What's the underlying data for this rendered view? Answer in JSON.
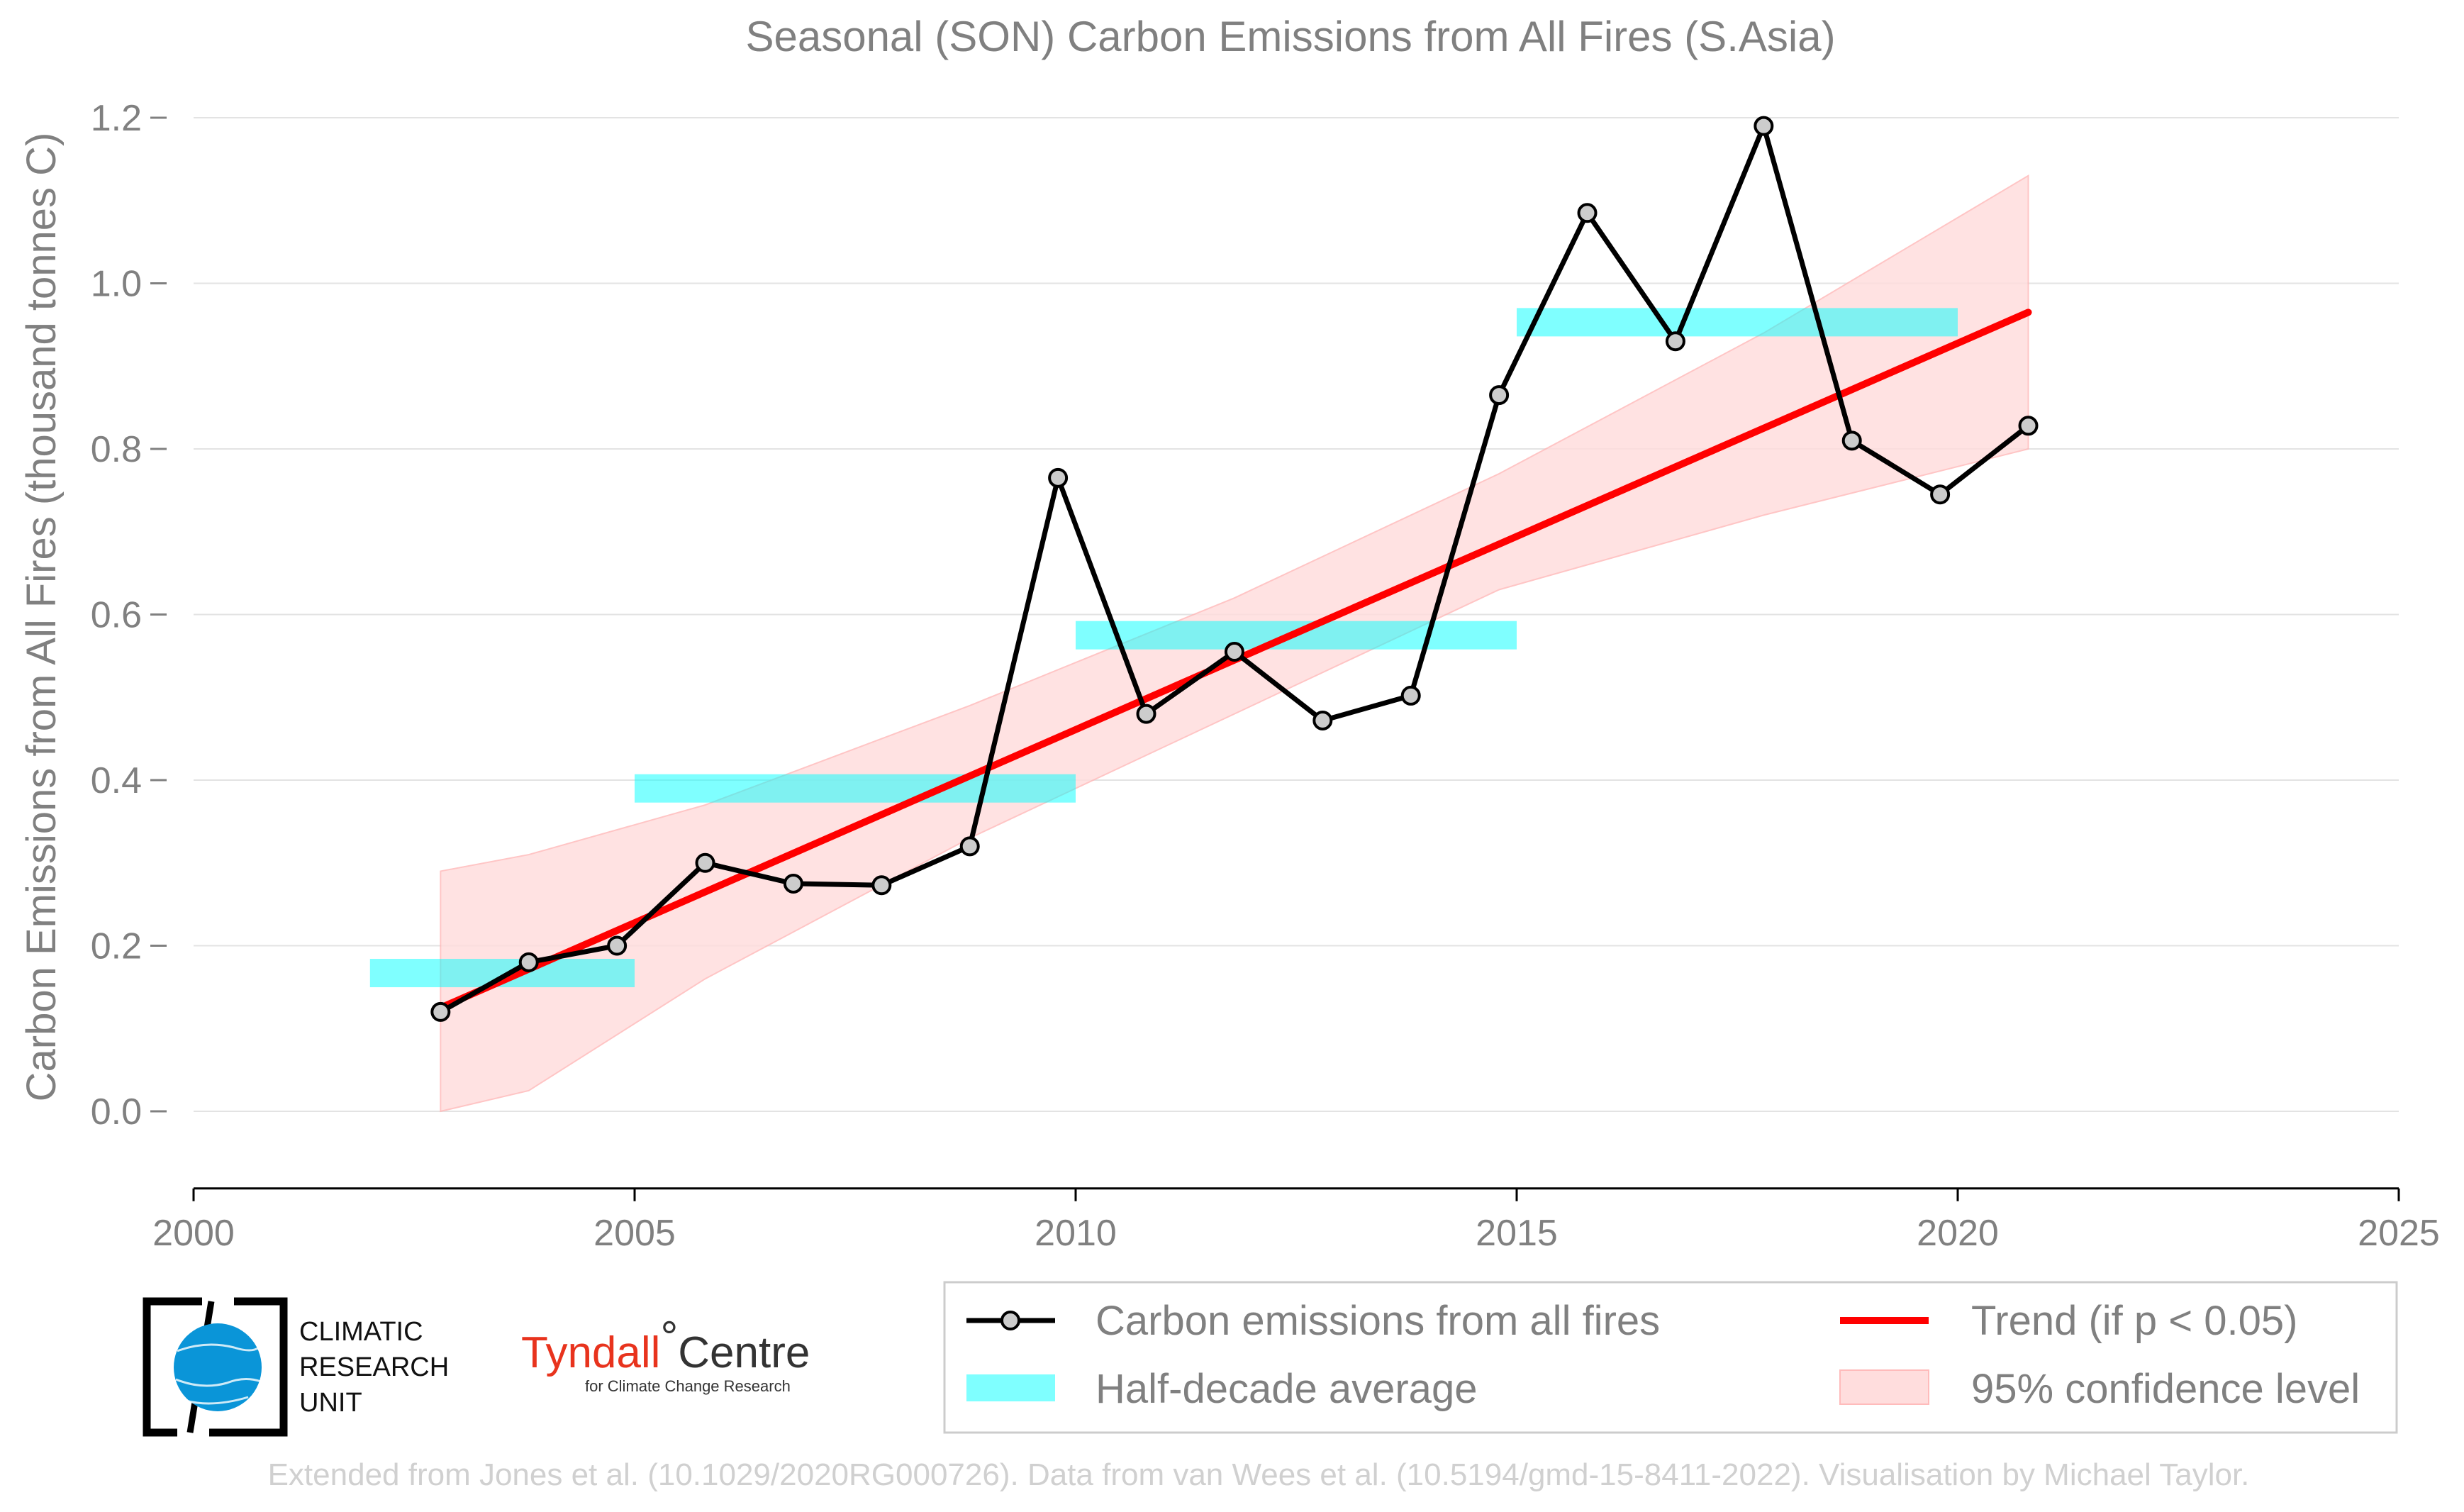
{
  "chart_data": {
    "type": "line",
    "title": "Seasonal (SON) Carbon Emissions from All Fires (S.Asia)",
    "xlabel": "",
    "ylabel": "Carbon Emissions from All Fires (thousand tonnes C)",
    "xlim": [
      2000,
      2025
    ],
    "ylim": [
      -0.1,
      1.25
    ],
    "x_ticks": [
      2000,
      2005,
      2010,
      2015,
      2020,
      2025
    ],
    "y_ticks": [
      0.0,
      0.2,
      0.4,
      0.6,
      0.8,
      1.0,
      1.2
    ],
    "y_tick_labels": [
      "0.0",
      "0.2",
      "0.4",
      "0.6",
      "0.8",
      "1.0",
      "1.2"
    ],
    "grid": "horizontal",
    "series": [
      {
        "name": "Carbon emissions from all fires",
        "type": "line-markers",
        "color": "#000000",
        "x": [
          2002.8,
          2003.8,
          2004.8,
          2005.8,
          2006.8,
          2007.8,
          2008.8,
          2009.8,
          2010.8,
          2011.8,
          2012.8,
          2013.8,
          2014.8,
          2015.8,
          2016.8,
          2017.8,
          2018.8,
          2019.8,
          2020.8
        ],
        "values": [
          0.12,
          0.18,
          0.2,
          0.3,
          0.275,
          0.273,
          0.32,
          0.765,
          0.48,
          0.555,
          0.472,
          0.502,
          0.865,
          1.085,
          0.93,
          1.19,
          0.81,
          0.745,
          0.828
        ]
      },
      {
        "name": "Half-decade average",
        "type": "segments",
        "color": "#00ffff",
        "segments": [
          {
            "x0": 2002,
            "x1": 2005,
            "value": 0.167
          },
          {
            "x0": 2005,
            "x1": 2010,
            "value": 0.39
          },
          {
            "x0": 2010,
            "x1": 2015,
            "value": 0.575
          },
          {
            "x0": 2015,
            "x1": 2020,
            "value": 0.953
          }
        ]
      },
      {
        "name": "Trend (if p < 0.05)",
        "type": "line",
        "color": "#ff0000",
        "x": [
          2002.8,
          2020.8
        ],
        "values": [
          0.125,
          0.965
        ]
      },
      {
        "name": "95% confidence level",
        "type": "band",
        "color": "#ffb3b3",
        "x": [
          2002.8,
          2003.8,
          2005.8,
          2008.8,
          2011.8,
          2014.8,
          2017.8,
          2020.8
        ],
        "upper": [
          0.29,
          0.31,
          0.37,
          0.49,
          0.62,
          0.77,
          0.94,
          1.13
        ],
        "lower": [
          0.0,
          0.025,
          0.16,
          0.33,
          0.48,
          0.63,
          0.72,
          0.8
        ]
      }
    ],
    "legend": {
      "placement": "bottom-right",
      "entries": [
        {
          "label": "Carbon emissions from all fires",
          "swatch": "line-marker",
          "color": "#000000"
        },
        {
          "label": "Trend (if p < 0.05)",
          "swatch": "line",
          "color": "#ff0000"
        },
        {
          "label": "Half-decade average",
          "swatch": "bar",
          "color": "#00ffff"
        },
        {
          "label": "95% confidence level",
          "swatch": "patch",
          "color": "#ffb3b3"
        }
      ]
    }
  },
  "logos": {
    "cru": {
      "lines": [
        "CLIMATIC",
        "RESEARCH",
        "UNIT"
      ]
    },
    "tyndall": {
      "main_red": "Tyndall",
      "degree": "°",
      "main_dark": "Centre",
      "sub": "for Climate Change Research"
    }
  },
  "footer": "Extended from Jones et al. (10.1029/2020RG000726). Data from van Wees et al. (10.5194/gmd-15-8411-2022). Visualisation by Michael Taylor."
}
